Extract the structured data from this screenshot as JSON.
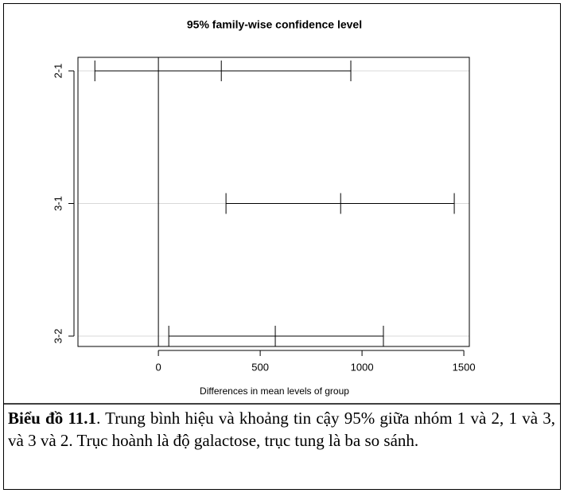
{
  "chart_data": {
    "type": "interval",
    "title": "95% family-wise confidence level",
    "xlabel": "Differences in mean levels of group",
    "categories": [
      "2-1",
      "3-1",
      "3-2"
    ],
    "values": [
      309,
      895,
      574
    ],
    "lower": [
      -312,
      332,
      51
    ],
    "upper": [
      945,
      1453,
      1105
    ],
    "xlim": [
      -395,
      1527
    ],
    "xticks": [
      0,
      500,
      1000,
      1500
    ],
    "vline": 0,
    "grid": true,
    "color": "#000000",
    "grid_color": "#d9d9d9"
  },
  "caption": {
    "label": "Biểu đồ 11.1",
    "text": ". Trung bình hiệu và khoảng tin cậy 95% giữa nhóm 1 và 2, 1 và 3, và 3 và 2. Trục hoành là độ galactose, trục tung là ba so sánh."
  }
}
